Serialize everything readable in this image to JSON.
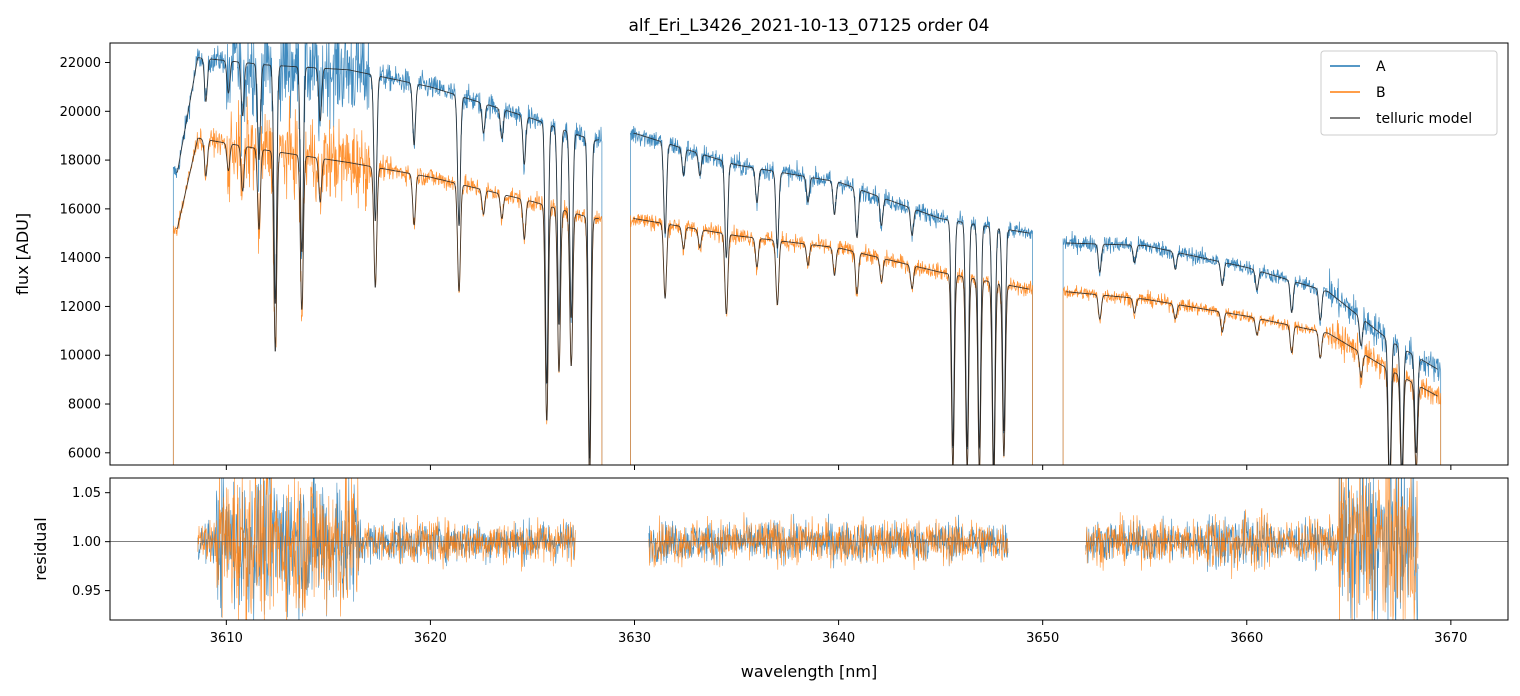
{
  "chart_data": [
    {
      "type": "line",
      "panel": "top",
      "title": "alf_Eri_L3426_2021-10-13_07125  order 04",
      "xlabel": "",
      "ylabel": "flux [ADU]",
      "xlim": [
        3604.3,
        3672.8
      ],
      "ylim": [
        5500,
        22800
      ],
      "yticks": [
        6000,
        8000,
        10000,
        12000,
        14000,
        16000,
        18000,
        20000,
        22000
      ],
      "grid": false,
      "legend": {
        "placement": "top-right",
        "entries": [
          {
            "label": "A",
            "color": "#1f77b4"
          },
          {
            "label": "B",
            "color": "#ff7f0e"
          },
          {
            "label": "telluric model",
            "color": "#555555"
          }
        ]
      },
      "segments": [
        {
          "x_start": 3607.4,
          "x_end": 3628.4
        },
        {
          "x_start": 3629.8,
          "x_end": 3649.5
        },
        {
          "x_start": 3651.0,
          "x_end": 3669.5
        }
      ],
      "continuum_anchors": {
        "A": {
          "x": [
            3607.6,
            3608.6,
            3612,
            3616,
            3620,
            3625,
            3628,
            3630,
            3635,
            3640,
            3645,
            3649.4,
            3651.2,
            3655,
            3660,
            3664,
            3667,
            3669.4
          ],
          "y": [
            17500,
            22200,
            21900,
            21700,
            21000,
            19700,
            18800,
            19100,
            17800,
            17100,
            15600,
            15000,
            14600,
            14500,
            13600,
            12600,
            10600,
            9400
          ]
        },
        "B": {
          "x": [
            3607.6,
            3608.6,
            3612,
            3616,
            3620,
            3625,
            3628,
            3630,
            3635,
            3640,
            3645,
            3649.4,
            3651.2,
            3655,
            3660,
            3664,
            3667,
            3669.4
          ],
          "y": [
            15200,
            18900,
            18400,
            17900,
            17300,
            16300,
            15600,
            15600,
            14900,
            14400,
            13400,
            12700,
            12600,
            12300,
            11600,
            10900,
            9400,
            8300
          ]
        }
      },
      "telluric_lines": [
        {
          "x": 3609.0,
          "depth": 0.08
        },
        {
          "x": 3610.1,
          "depth": 0.06
        },
        {
          "x": 3610.8,
          "depth": 0.1
        },
        {
          "x": 3611.6,
          "depth": 0.18
        },
        {
          "x": 3612.4,
          "depth": 0.45
        },
        {
          "x": 3613.7,
          "depth": 0.35
        },
        {
          "x": 3614.6,
          "depth": 0.1
        },
        {
          "x": 3617.3,
          "depth": 0.28
        },
        {
          "x": 3619.2,
          "depth": 0.12
        },
        {
          "x": 3621.4,
          "depth": 0.26
        },
        {
          "x": 3622.6,
          "depth": 0.06
        },
        {
          "x": 3623.5,
          "depth": 0.06
        },
        {
          "x": 3624.6,
          "depth": 0.1
        },
        {
          "x": 3625.7,
          "depth": 0.55
        },
        {
          "x": 3626.3,
          "depth": 0.42
        },
        {
          "x": 3626.9,
          "depth": 0.4
        },
        {
          "x": 3627.8,
          "depth": 0.7
        },
        {
          "x": 3631.5,
          "depth": 0.2
        },
        {
          "x": 3632.4,
          "depth": 0.06
        },
        {
          "x": 3633.2,
          "depth": 0.05
        },
        {
          "x": 3634.5,
          "depth": 0.22
        },
        {
          "x": 3636.0,
          "depth": 0.08
        },
        {
          "x": 3637.0,
          "depth": 0.18
        },
        {
          "x": 3638.5,
          "depth": 0.06
        },
        {
          "x": 3639.8,
          "depth": 0.08
        },
        {
          "x": 3640.9,
          "depth": 0.12
        },
        {
          "x": 3642.1,
          "depth": 0.07
        },
        {
          "x": 3643.6,
          "depth": 0.07
        },
        {
          "x": 3645.6,
          "depth": 0.6
        },
        {
          "x": 3646.3,
          "depth": 0.6
        },
        {
          "x": 3646.9,
          "depth": 0.6
        },
        {
          "x": 3647.6,
          "depth": 0.65
        },
        {
          "x": 3648.1,
          "depth": 0.55
        },
        {
          "x": 3652.8,
          "depth": 0.08
        },
        {
          "x": 3654.5,
          "depth": 0.05
        },
        {
          "x": 3656.5,
          "depth": 0.05
        },
        {
          "x": 3658.8,
          "depth": 0.07
        },
        {
          "x": 3660.5,
          "depth": 0.06
        },
        {
          "x": 3662.2,
          "depth": 0.1
        },
        {
          "x": 3663.6,
          "depth": 0.1
        },
        {
          "x": 3665.6,
          "depth": 0.1
        },
        {
          "x": 3667.0,
          "depth": 0.55
        },
        {
          "x": 3667.6,
          "depth": 0.5
        },
        {
          "x": 3668.3,
          "depth": 0.4
        }
      ]
    },
    {
      "type": "line",
      "panel": "bottom",
      "title": "",
      "xlabel": "wavelength [nm]",
      "ylabel": "residual",
      "xlim": [
        3604.3,
        3672.8
      ],
      "ylim": [
        0.92,
        1.065
      ],
      "xticks": [
        3610,
        3620,
        3630,
        3640,
        3650,
        3660,
        3670
      ],
      "yticks": [
        0.95,
        1.0,
        1.05
      ],
      "ytick_labels": [
        "0.95",
        "1.00",
        "1.05"
      ],
      "reference_line": 1.0,
      "grid": false,
      "series": [
        {
          "name": "A",
          "color": "#1f77b4"
        },
        {
          "name": "B",
          "color": "#ff7f0e"
        }
      ],
      "segments": [
        {
          "x_start": 3608.6,
          "x_end": 3627.1
        },
        {
          "x_start": 3630.7,
          "x_end": 3648.3
        },
        {
          "x_start": 3652.1,
          "x_end": 3668.4
        }
      ]
    }
  ]
}
